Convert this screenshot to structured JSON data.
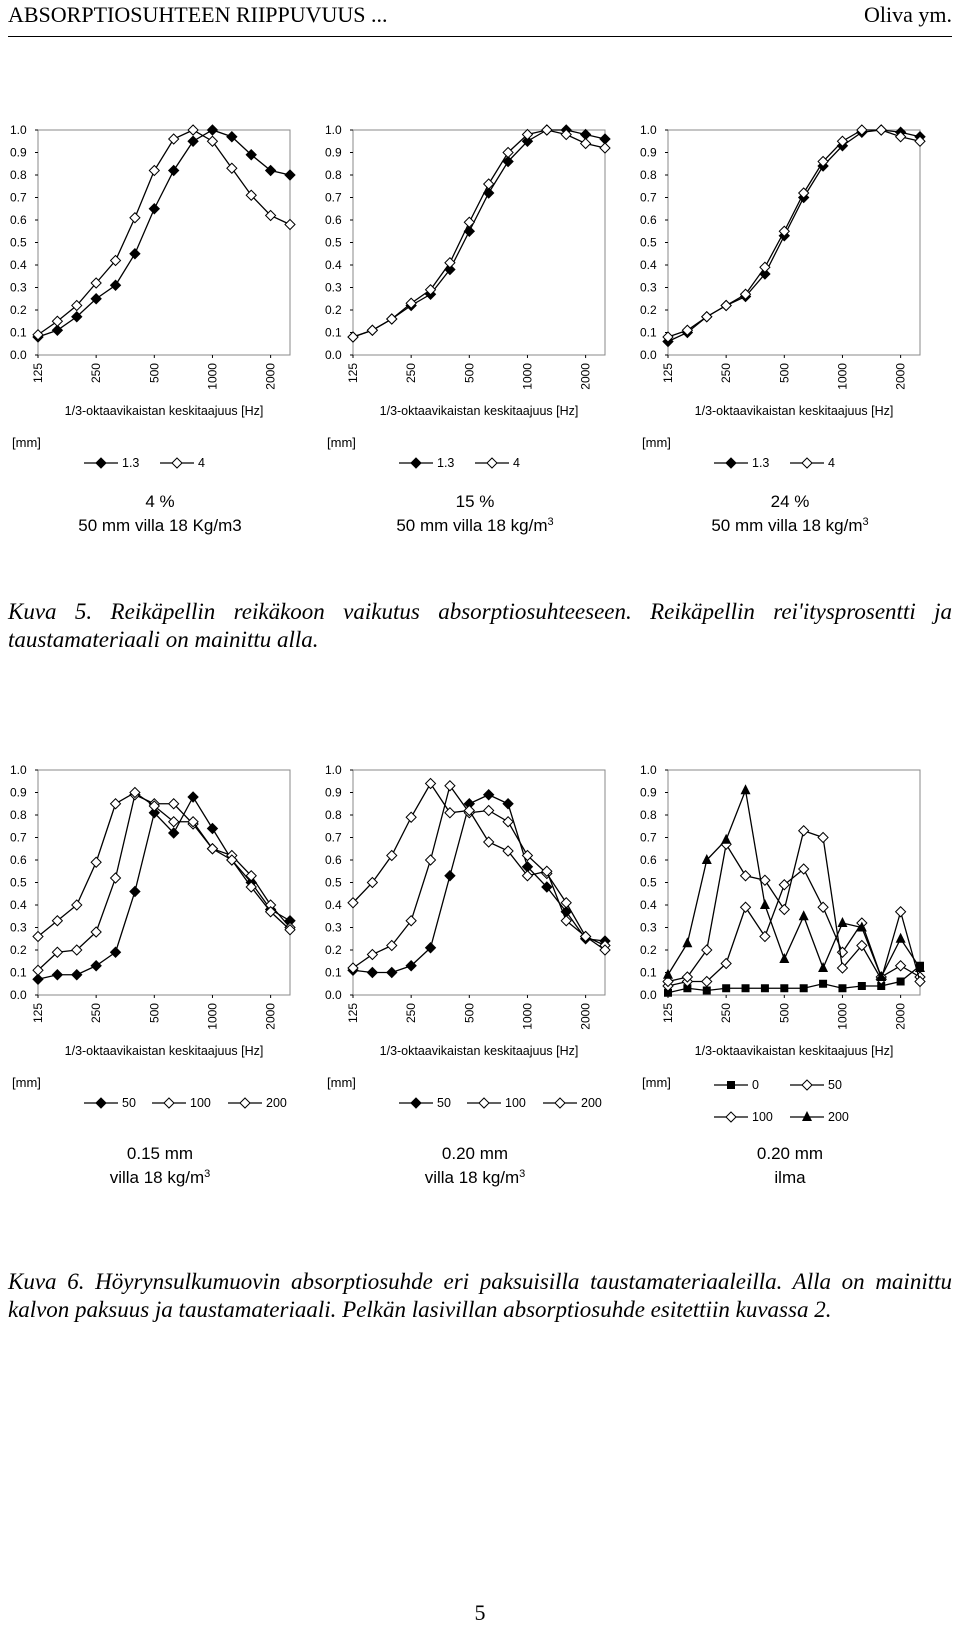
{
  "header": {
    "title": "ABSORPTIOSUHTEEN RIIPPUVUUS ...",
    "authors": "Oliva ym."
  },
  "chart_data": [
    {
      "type": "line",
      "xlabel": "1/3-oktaavikaistan keskitaajuus [Hz]",
      "categories": [
        "125",
        "160",
        "200",
        "250",
        "315",
        "400",
        "500",
        "630",
        "800",
        "1000",
        "1250",
        "1600",
        "2000",
        "2500"
      ],
      "ylim": [
        0,
        1.0
      ],
      "yticks": [
        "0.0",
        "0.1",
        "0.2",
        "0.3",
        "0.4",
        "0.5",
        "0.6",
        "0.7",
        "0.8",
        "0.9",
        "1.0"
      ],
      "xticks": [
        "125",
        "250",
        "500",
        "1000",
        "2000"
      ],
      "legend_title": "[mm]",
      "series": [
        {
          "name": "1.3",
          "marker": "diamond-filled",
          "values": [
            0.08,
            0.11,
            0.17,
            0.25,
            0.31,
            0.45,
            0.65,
            0.82,
            0.95,
            1.0,
            0.97,
            0.89,
            0.82,
            0.8
          ]
        },
        {
          "name": "4",
          "marker": "diamond-open",
          "values": [
            0.09,
            0.15,
            0.22,
            0.32,
            0.42,
            0.61,
            0.82,
            0.96,
            1.0,
            0.95,
            0.83,
            0.71,
            0.62,
            0.58
          ]
        }
      ],
      "label1": "4 %",
      "label2": "50 mm villa 18 Kg/m3",
      "label2_sup": ""
    },
    {
      "type": "line",
      "xlabel": "1/3-oktaavikaistan keskitaajuus [Hz]",
      "categories": [
        "125",
        "160",
        "200",
        "250",
        "315",
        "400",
        "500",
        "630",
        "800",
        "1000",
        "1250",
        "1600",
        "2000",
        "2500"
      ],
      "ylim": [
        0,
        1.0
      ],
      "yticks": [
        "0.0",
        "0.1",
        "0.2",
        "0.3",
        "0.4",
        "0.5",
        "0.6",
        "0.7",
        "0.8",
        "0.9",
        "1.0"
      ],
      "xticks": [
        "125",
        "250",
        "500",
        "1000",
        "2000"
      ],
      "legend_title": "[mm]",
      "series": [
        {
          "name": "1.3",
          "marker": "diamond-filled",
          "values": [
            0.08,
            0.11,
            0.16,
            0.22,
            0.27,
            0.38,
            0.55,
            0.72,
            0.86,
            0.95,
            1.0,
            1.0,
            0.98,
            0.96
          ]
        },
        {
          "name": "4",
          "marker": "diamond-open",
          "values": [
            0.08,
            0.11,
            0.16,
            0.23,
            0.29,
            0.41,
            0.59,
            0.76,
            0.9,
            0.98,
            1.0,
            0.98,
            0.94,
            0.92
          ]
        }
      ],
      "label1": "15 %",
      "label2": "50 mm villa 18 kg/m",
      "label2_sup": "3"
    },
    {
      "type": "line",
      "xlabel": "1/3-oktaavikaistan keskitaajuus [Hz]",
      "categories": [
        "125",
        "160",
        "200",
        "250",
        "315",
        "400",
        "500",
        "630",
        "800",
        "1000",
        "1250",
        "1600",
        "2000",
        "2500"
      ],
      "ylim": [
        0,
        1.0
      ],
      "yticks": [
        "0.0",
        "0.1",
        "0.2",
        "0.3",
        "0.4",
        "0.5",
        "0.6",
        "0.7",
        "0.8",
        "0.9",
        "1.0"
      ],
      "xticks": [
        "125",
        "250",
        "500",
        "1000",
        "2000"
      ],
      "legend_title": "[mm]",
      "series": [
        {
          "name": "1.3",
          "marker": "diamond-filled",
          "values": [
            0.06,
            0.1,
            0.17,
            0.22,
            0.26,
            0.36,
            0.53,
            0.7,
            0.84,
            0.93,
            0.99,
            1.0,
            0.99,
            0.97
          ]
        },
        {
          "name": "4",
          "marker": "diamond-open",
          "values": [
            0.08,
            0.11,
            0.17,
            0.22,
            0.27,
            0.39,
            0.55,
            0.72,
            0.86,
            0.95,
            1.0,
            1.0,
            0.97,
            0.95
          ]
        }
      ],
      "label1": "24 %",
      "label2": "50 mm villa 18 kg/m",
      "label2_sup": "3"
    },
    {
      "type": "line",
      "xlabel": "1/3-oktaavikaistan keskitaajuus [Hz]",
      "categories": [
        "125",
        "160",
        "200",
        "250",
        "315",
        "400",
        "500",
        "630",
        "800",
        "1000",
        "1250",
        "1600",
        "2000",
        "2500"
      ],
      "ylim": [
        0,
        1.0
      ],
      "yticks": [
        "0.0",
        "0.1",
        "0.2",
        "0.3",
        "0.4",
        "0.5",
        "0.6",
        "0.7",
        "0.8",
        "0.9",
        "1.0"
      ],
      "xticks": [
        "125",
        "250",
        "500",
        "1000",
        "2000"
      ],
      "legend_title": "[mm]",
      "series": [
        {
          "name": "50",
          "marker": "diamond-filled",
          "values": [
            0.07,
            0.09,
            0.09,
            0.13,
            0.19,
            0.46,
            0.81,
            0.72,
            0.88,
            0.74,
            0.6,
            0.5,
            0.38,
            0.33
          ]
        },
        {
          "name": "100",
          "marker": "diamond-open",
          "values": [
            0.11,
            0.19,
            0.2,
            0.28,
            0.52,
            0.89,
            0.85,
            0.85,
            0.76,
            0.65,
            0.62,
            0.53,
            0.4,
            0.3
          ]
        },
        {
          "name": "200",
          "marker": "diamond-open",
          "values": [
            0.26,
            0.33,
            0.4,
            0.59,
            0.85,
            0.9,
            0.84,
            0.77,
            0.77,
            0.65,
            0.6,
            0.48,
            0.37,
            0.29
          ]
        }
      ],
      "label1": "0.15 mm",
      "label2": "villa 18 kg/m",
      "label2_sup": "3"
    },
    {
      "type": "line",
      "xlabel": "1/3-oktaavikaistan keskitaajuus [Hz]",
      "categories": [
        "125",
        "160",
        "200",
        "250",
        "315",
        "400",
        "500",
        "630",
        "800",
        "1000",
        "1250",
        "1600",
        "2000",
        "2500"
      ],
      "ylim": [
        0,
        1.0
      ],
      "yticks": [
        "0.0",
        "0.1",
        "0.2",
        "0.3",
        "0.4",
        "0.5",
        "0.6",
        "0.7",
        "0.8",
        "0.9",
        "1.0"
      ],
      "xticks": [
        "125",
        "250",
        "500",
        "1000",
        "2000"
      ],
      "legend_title": "[mm]",
      "series": [
        {
          "name": "50",
          "marker": "diamond-filled",
          "values": [
            0.11,
            0.1,
            0.1,
            0.13,
            0.21,
            0.53,
            0.85,
            0.89,
            0.85,
            0.57,
            0.48,
            0.37,
            0.25,
            0.24
          ]
        },
        {
          "name": "100",
          "marker": "diamond-open",
          "values": [
            0.12,
            0.18,
            0.22,
            0.33,
            0.6,
            0.93,
            0.81,
            0.82,
            0.77,
            0.62,
            0.54,
            0.41,
            0.26,
            0.22
          ]
        },
        {
          "name": "200",
          "marker": "diamond-open",
          "values": [
            0.41,
            0.5,
            0.62,
            0.79,
            0.94,
            0.81,
            0.82,
            0.68,
            0.64,
            0.53,
            0.55,
            0.33,
            0.26,
            0.2
          ]
        }
      ],
      "label1": "0.20 mm",
      "label2": "villa 18 kg/m",
      "label2_sup": "3"
    },
    {
      "type": "line",
      "xlabel": "1/3-oktaavikaistan keskitaajuus [Hz]",
      "categories": [
        "125",
        "160",
        "200",
        "250",
        "315",
        "400",
        "500",
        "630",
        "800",
        "1000",
        "1250",
        "1600",
        "2000",
        "2500"
      ],
      "ylim": [
        0,
        1.0
      ],
      "yticks": [
        "0.0",
        "0.1",
        "0.2",
        "0.3",
        "0.4",
        "0.5",
        "0.6",
        "0.7",
        "0.8",
        "0.9",
        "1.0"
      ],
      "xticks": [
        "125",
        "250",
        "500",
        "1000",
        "2000"
      ],
      "legend_title": "[mm]",
      "series": [
        {
          "name": "0",
          "marker": "square-filled",
          "values": [
            0.01,
            0.03,
            0.02,
            0.03,
            0.03,
            0.03,
            0.03,
            0.03,
            0.05,
            0.03,
            0.04,
            0.04,
            0.06,
            0.13
          ]
        },
        {
          "name": "50",
          "marker": "diamond-open",
          "values": [
            0.04,
            0.06,
            0.06,
            0.14,
            0.39,
            0.26,
            0.49,
            0.56,
            0.39,
            0.19,
            0.32,
            0.08,
            0.13,
            0.08
          ]
        },
        {
          "name": "100",
          "marker": "diamond-open",
          "values": [
            0.06,
            0.08,
            0.2,
            0.67,
            0.53,
            0.51,
            0.38,
            0.73,
            0.7,
            0.12,
            0.22,
            0.07,
            0.37,
            0.06
          ]
        },
        {
          "name": "200",
          "marker": "triangle-filled",
          "values": [
            0.09,
            0.23,
            0.6,
            0.69,
            0.91,
            0.4,
            0.16,
            0.35,
            0.12,
            0.32,
            0.3,
            0.08,
            0.25,
            0.12
          ]
        }
      ],
      "label1": "0.20 mm",
      "label2": "ilma",
      "label2_sup": ""
    }
  ],
  "captions": {
    "kuva5": "Kuva 5. Reikäpellin reikäkoon vaikutus absorptiosuhteeseen. Reikäpellin rei'itysprosentti ja taustamateriaali on mainittu alla.",
    "kuva6": "Kuva 6. Höyrynsulkumuovin absorptiosuhde eri paksuisilla taustamateriaaleilla. Alla on mainittu kalvon paksuus ja taustamateriaali. Pelkän lasivillan absorptiosuhde esitettiin kuvassa 2."
  },
  "page_number": "5"
}
